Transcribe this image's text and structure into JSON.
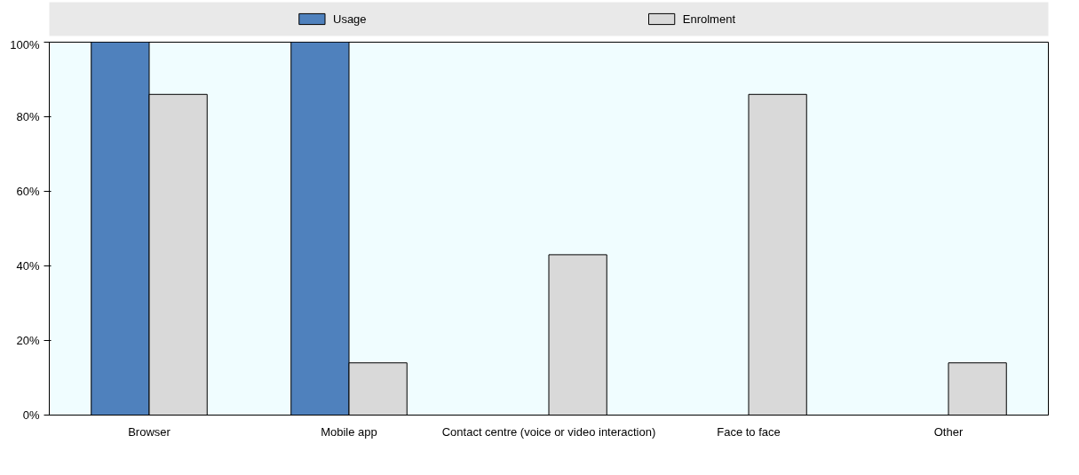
{
  "chart_data": {
    "type": "bar",
    "categories": [
      "Browser",
      "Mobile app",
      "Contact centre (voice or video interaction)",
      "Face to face",
      "Other"
    ],
    "series": [
      {
        "name": "Usage",
        "color": "#4f81bd",
        "values": [
          100,
          100,
          0,
          0,
          0
        ]
      },
      {
        "name": "Enrolment",
        "color": "#d9d9d9",
        "values": [
          86,
          14,
          43,
          86,
          14
        ]
      }
    ],
    "ylim": [
      0,
      100
    ],
    "yticks": [
      {
        "value": 0,
        "label": "0%"
      },
      {
        "value": 20,
        "label": "20%"
      },
      {
        "value": 40,
        "label": "40%"
      },
      {
        "value": 60,
        "label": "60%"
      },
      {
        "value": 80,
        "label": "80%"
      },
      {
        "value": 100,
        "label": "100%"
      }
    ],
    "grid": false,
    "legend": "top"
  }
}
